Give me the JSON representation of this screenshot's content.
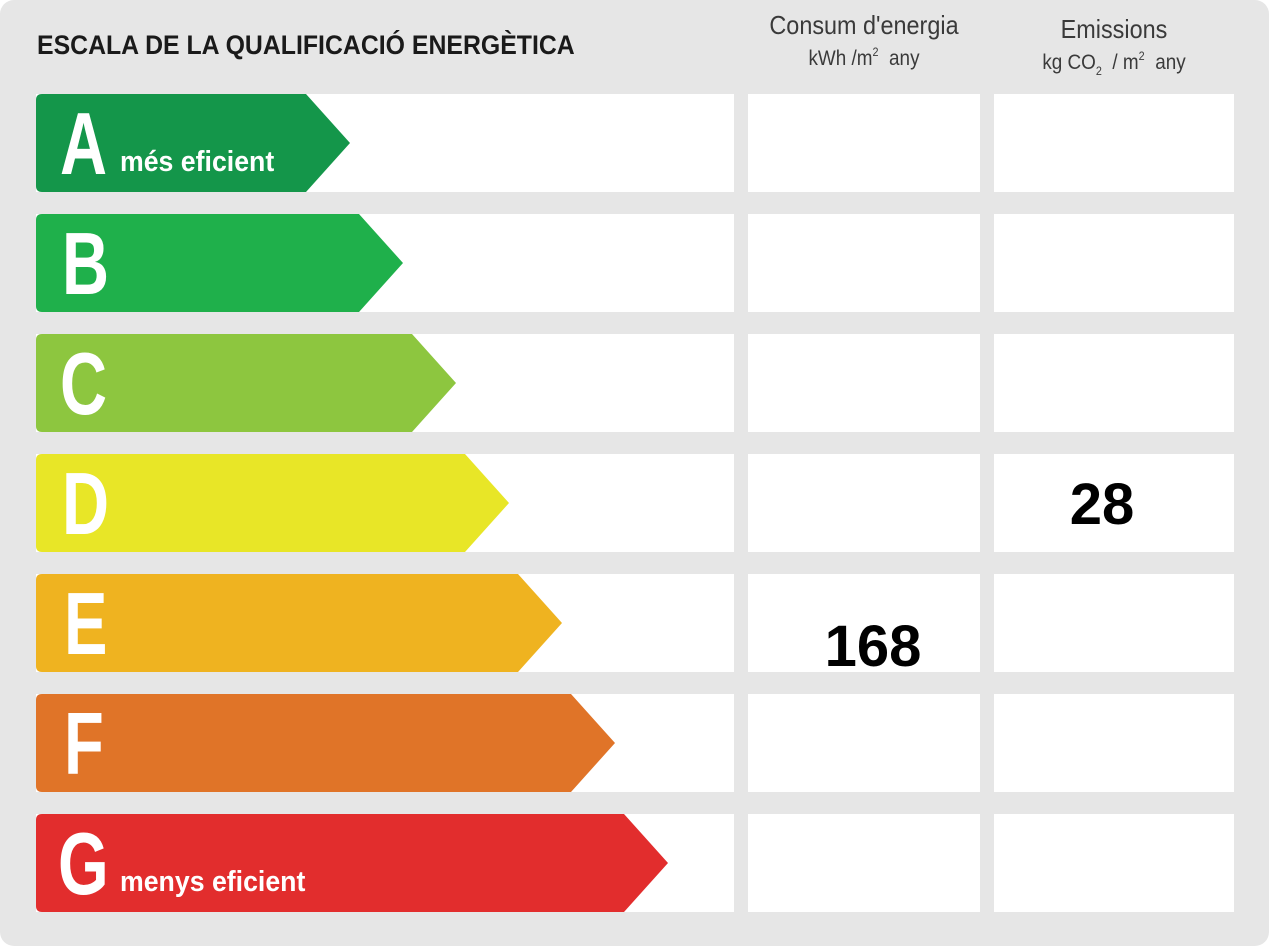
{
  "title": "ESCALA DE LA QUALIFICACIÓ ENERGÈTICA",
  "columns": {
    "energy": {
      "title": "Consum d'energia",
      "unit_prefix": "kWh /m",
      "unit_sup": "2",
      "unit_suffix": "any"
    },
    "emissions": {
      "title": "Emissions",
      "unit_prefix": "kg CO",
      "unit_sub": "2",
      "unit_mid": "/ m",
      "unit_sup": "2",
      "unit_suffix": "any"
    }
  },
  "ratings": [
    {
      "letter": "A",
      "label": "més eficient",
      "color": "#14964a",
      "energy": "",
      "emissions": ""
    },
    {
      "letter": "B",
      "label": "",
      "color": "#1fb04b",
      "energy": "",
      "emissions": ""
    },
    {
      "letter": "C",
      "label": "",
      "color": "#8dc63f",
      "energy": "",
      "emissions": ""
    },
    {
      "letter": "D",
      "label": "",
      "color": "#e8e627",
      "energy": "",
      "emissions": "28"
    },
    {
      "letter": "E",
      "label": "",
      "color": "#efb320",
      "energy": "168",
      "emissions": ""
    },
    {
      "letter": "F",
      "label": "",
      "color": "#e07428",
      "energy": "",
      "emissions": ""
    },
    {
      "letter": "G",
      "label": "menys eficient",
      "color": "#e22d2d",
      "energy": "",
      "emissions": ""
    }
  ]
}
